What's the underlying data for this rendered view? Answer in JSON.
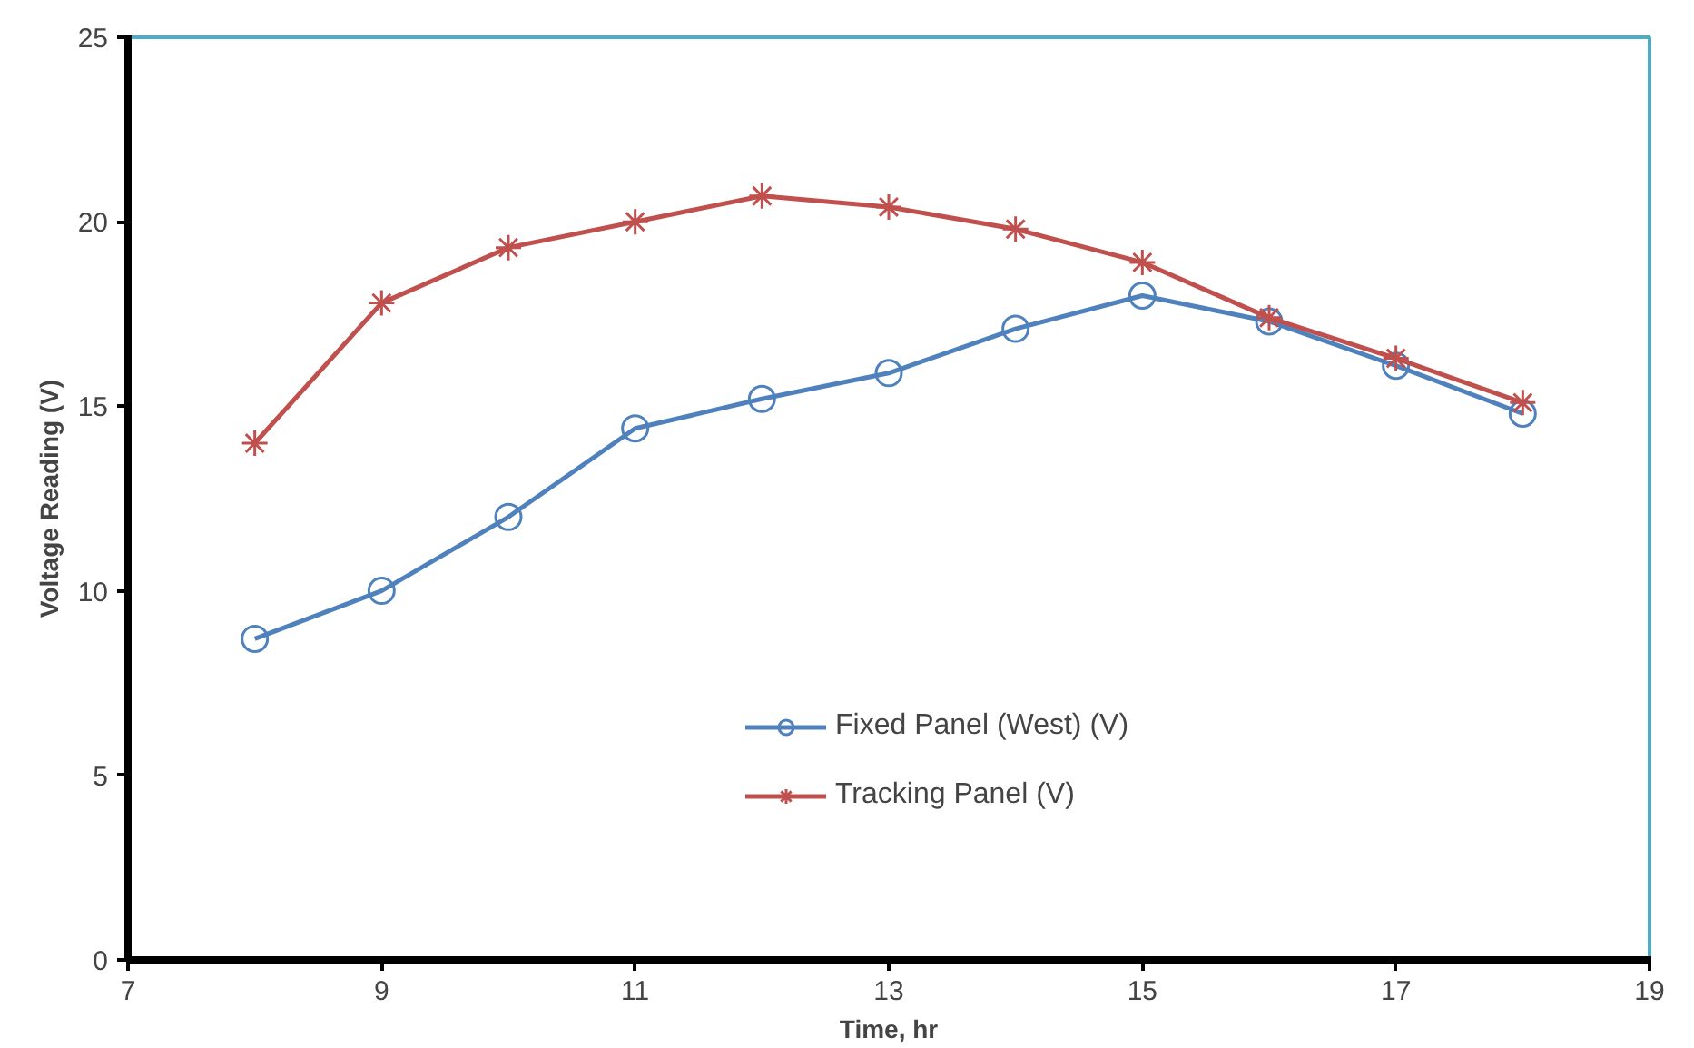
{
  "chart_data": {
    "type": "line",
    "xlabel": "Time, hr",
    "ylabel": "Voltage Reading (V)",
    "x": [
      8,
      9,
      10,
      11,
      12,
      13,
      14,
      15,
      16,
      17,
      18
    ],
    "series": [
      {
        "name": "Fixed Panel (West) (V)",
        "color": "#4f81bd",
        "marker": "circle",
        "values": [
          8.7,
          10.0,
          12.0,
          14.4,
          15.2,
          15.9,
          17.1,
          18.0,
          17.3,
          16.1,
          14.8
        ]
      },
      {
        "name": "Tracking Panel (V)",
        "color": "#c0504d",
        "marker": "cross",
        "values": [
          14.0,
          17.8,
          19.3,
          20.0,
          20.7,
          20.4,
          19.8,
          18.9,
          17.4,
          16.3,
          15.1
        ]
      }
    ],
    "xlim": [
      7,
      19
    ],
    "xticks": [
      7,
      9,
      11,
      13,
      15,
      17,
      19
    ],
    "ylim": [
      0,
      25
    ],
    "yticks": [
      0,
      5,
      10,
      15,
      20,
      25
    ],
    "grid": false,
    "legend": "bottom",
    "line_style": "solid"
  }
}
